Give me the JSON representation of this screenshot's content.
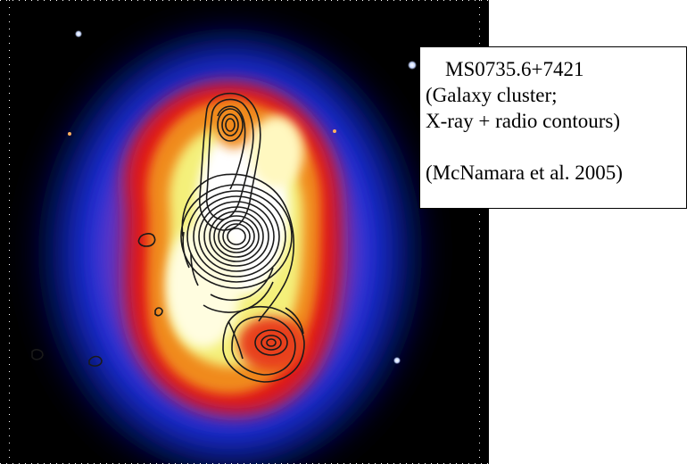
{
  "figure": {
    "caption_lines": [
      "MS0735.6+7421",
      "(Galaxy cluster;",
      "X-ray + radio contours)",
      "(McNamara et al. 2005)"
    ]
  },
  "colors": {
    "background_space": "#000000",
    "blue_halo": "#1a2fd6",
    "red_band": "#e01812",
    "orange_band": "#f08a1c",
    "yellow_core": "#f4f07a",
    "white_core": "#ffffff",
    "contours": "#1a1a1a",
    "box_border": "#000000"
  }
}
